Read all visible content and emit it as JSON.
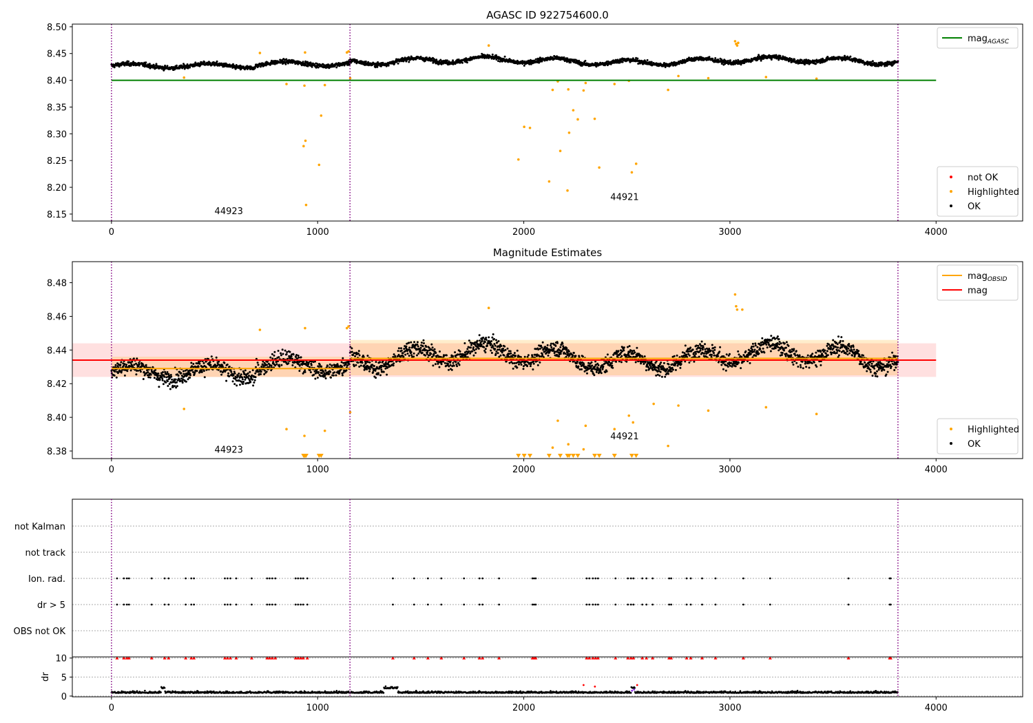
{
  "colors": {
    "ok": "#000000",
    "highlighted": "#ffa500",
    "not_ok": "#ff0000",
    "agasc_line": "#008000",
    "obsid_line": "#ffa500",
    "mag_line": "#ff0000",
    "obs_boundary": "#800080"
  },
  "chart_data": [
    {
      "type": "scatter",
      "title": "AGASC ID 922754600.0",
      "xlim": [
        -190,
        4420
      ],
      "ylim": [
        8.137,
        8.505
      ],
      "xticks": [
        "0",
        "1000",
        "2000",
        "3000",
        "4000"
      ],
      "yticks": [
        "8.15",
        "8.20",
        "8.25",
        "8.30",
        "8.35",
        "8.40",
        "8.45",
        "8.50"
      ],
      "vlines": [
        0,
        1157,
        3815
      ],
      "agasc_mag": 8.4,
      "agasc_line_range": [
        0,
        4000
      ],
      "annotations": [
        {
          "text": "44923",
          "x": 500,
          "y": 8.15
        },
        {
          "text": "44921",
          "x": 2420,
          "y": 8.176
        }
      ],
      "legend_upper": {
        "position": "upper-right",
        "entries": [
          {
            "label": "mag",
            "subscript": "AGASC",
            "kind": "line",
            "color": "#008000"
          }
        ]
      },
      "legend_lower": {
        "position": "lower-right",
        "entries": [
          {
            "label": "not OK",
            "kind": "dot",
            "color": "#ff0000"
          },
          {
            "label": "Highlighted",
            "kind": "dot",
            "color": "#ffa500"
          },
          {
            "label": "OK",
            "kind": "dot",
            "color": "#000000"
          }
        ]
      },
      "highlighted_points": [
        [
          352,
          8.405
        ],
        [
          720,
          8.451
        ],
        [
          849,
          8.393
        ],
        [
          932,
          8.277
        ],
        [
          936,
          8.39
        ],
        [
          939,
          8.452
        ],
        [
          941,
          8.287
        ],
        [
          944,
          8.167
        ],
        [
          1007,
          8.242
        ],
        [
          1017,
          8.334
        ],
        [
          1035,
          8.391
        ],
        [
          1142,
          8.452
        ],
        [
          1150,
          8.454
        ],
        [
          1158,
          8.404
        ],
        [
          1830,
          8.465
        ],
        [
          1974,
          8.252
        ],
        [
          2002,
          8.313
        ],
        [
          2030,
          8.311
        ],
        [
          2123,
          8.211
        ],
        [
          2140,
          8.382
        ],
        [
          2165,
          8.398
        ],
        [
          2177,
          8.268
        ],
        [
          2212,
          8.194
        ],
        [
          2216,
          8.383
        ],
        [
          2220,
          8.302
        ],
        [
          2240,
          8.344
        ],
        [
          2262,
          8.327
        ],
        [
          2290,
          8.381
        ],
        [
          2300,
          8.395
        ],
        [
          2344,
          8.328
        ],
        [
          2366,
          8.237
        ],
        [
          2440,
          8.393
        ],
        [
          2510,
          8.399
        ],
        [
          2524,
          8.228
        ],
        [
          2545,
          8.244
        ],
        [
          2700,
          8.382
        ],
        [
          2750,
          8.408
        ],
        [
          2895,
          8.404
        ],
        [
          3025,
          8.473
        ],
        [
          3030,
          8.468
        ],
        [
          3035,
          8.465
        ],
        [
          3040,
          8.47
        ],
        [
          3175,
          8.406
        ],
        [
          3420,
          8.403
        ]
      ]
    },
    {
      "type": "scatter",
      "title": "Magnitude Estimates",
      "xlim": [
        -190,
        4420
      ],
      "ylim": [
        8.3755,
        8.4925
      ],
      "xticks": [
        "0",
        "1000",
        "2000",
        "3000",
        "4000"
      ],
      "yticks": [
        "8.38",
        "8.40",
        "8.42",
        "8.44",
        "8.46",
        "8.48"
      ],
      "vlines": [
        0,
        1157,
        3815
      ],
      "mag": 8.434,
      "mag_band": [
        8.424,
        8.444
      ],
      "mag_range": [
        -190,
        4000
      ],
      "obsid_segments": [
        {
          "x0": 0,
          "x1": 1157,
          "mag": 8.429,
          "band": [
            8.424,
            8.436
          ]
        },
        {
          "x0": 1157,
          "x1": 3815,
          "mag": 8.435,
          "band": [
            8.425,
            8.446
          ]
        }
      ],
      "annotations": [
        {
          "text": "44923",
          "x": 500,
          "y": 8.379
        },
        {
          "text": "44921",
          "x": 2420,
          "y": 8.387
        }
      ],
      "legend_upper": {
        "position": "upper-right",
        "entries": [
          {
            "label": "mag",
            "subscript": "OBSID",
            "kind": "line",
            "color": "#ffa500"
          },
          {
            "label": "mag",
            "subscript": "",
            "kind": "line",
            "color": "#ff0000"
          }
        ]
      },
      "legend_lower": {
        "position": "lower-right",
        "entries": [
          {
            "label": "Highlighted",
            "kind": "dot",
            "color": "#ffa500"
          },
          {
            "label": "OK",
            "kind": "dot",
            "color": "#000000"
          }
        ]
      },
      "highlighted_points": [
        [
          352,
          8.405
        ],
        [
          720,
          8.452
        ],
        [
          849,
          8.393
        ],
        [
          936,
          8.389
        ],
        [
          939,
          8.453
        ],
        [
          1035,
          8.392
        ],
        [
          1142,
          8.453
        ],
        [
          1150,
          8.454
        ],
        [
          1158,
          8.403
        ],
        [
          1830,
          8.465
        ],
        [
          2140,
          8.382
        ],
        [
          2165,
          8.398
        ],
        [
          2216,
          8.384
        ],
        [
          2290,
          8.381
        ],
        [
          2300,
          8.395
        ],
        [
          2440,
          8.393
        ],
        [
          2510,
          8.401
        ],
        [
          2530,
          8.397
        ],
        [
          2630,
          8.408
        ],
        [
          2700,
          8.383
        ],
        [
          2750,
          8.407
        ],
        [
          2895,
          8.404
        ],
        [
          3025,
          8.473
        ],
        [
          3030,
          8.466
        ],
        [
          3035,
          8.464
        ],
        [
          3060,
          8.464
        ],
        [
          3175,
          8.406
        ],
        [
          3420,
          8.402
        ]
      ],
      "below_range_markers": [
        932,
        936,
        939,
        944,
        1007,
        1017,
        1974,
        2002,
        2030,
        2123,
        2177,
        2212,
        2220,
        2240,
        2262,
        2344,
        2366,
        2440,
        2524,
        2545
      ]
    },
    {
      "type": "scatter",
      "xlim": [
        -190,
        4420
      ],
      "xticks": [
        "0",
        "1000",
        "2000",
        "3000",
        "4000"
      ],
      "vlines": [
        0,
        1157,
        3815
      ],
      "flag_rows": [
        "not Kalman",
        "not track",
        "Ion. rad.",
        "dr > 5",
        "OBS not OK"
      ],
      "flag_points": [
        27,
        60,
        75,
        85,
        195,
        258,
        277,
        360,
        387,
        400,
        550,
        563,
        577,
        605,
        680,
        755,
        767,
        780,
        795,
        893,
        905,
        918,
        930,
        950,
        1365,
        1468,
        1535,
        1600,
        1710,
        1785,
        1800,
        1880,
        2042,
        2050,
        2058,
        2305,
        2318,
        2335,
        2348,
        2360,
        2445,
        2505,
        2520,
        2532,
        2575,
        2595,
        2625,
        2705,
        2715,
        2790,
        2810,
        2865,
        2930,
        3065,
        3195,
        3575,
        3775,
        3780
      ],
      "dr_subplot": {
        "ylabel": "dr",
        "ylim": [
          -0.2,
          10.3
        ],
        "yticks": [
          "0",
          "5",
          "10"
        ],
        "clip_value": 10,
        "red_points": [
          [
            2290,
            2.9
          ],
          [
            2345,
            2.5
          ],
          [
            2550,
            2.9
          ]
        ],
        "purple_points": [
          [
            2525,
            1.4
          ],
          [
            2535,
            1.7
          ]
        ]
      }
    }
  ]
}
